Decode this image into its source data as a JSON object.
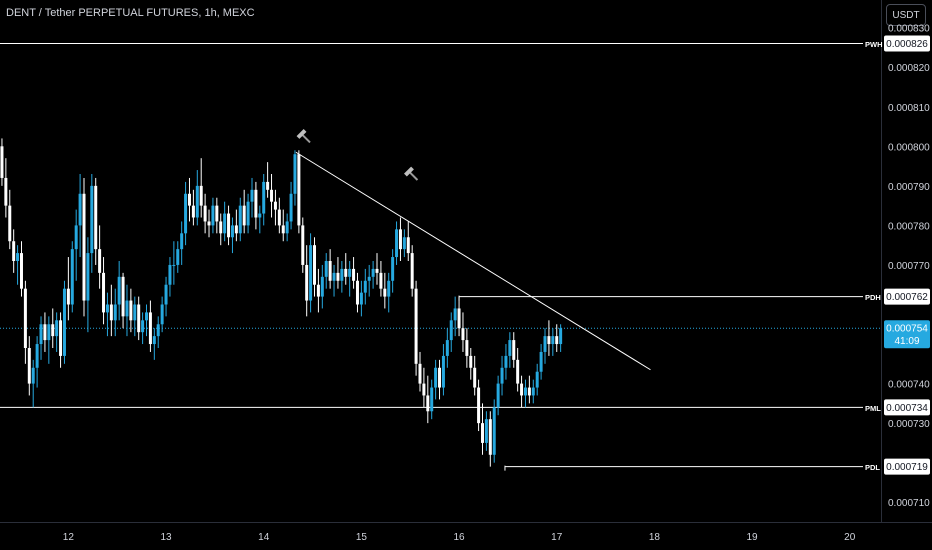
{
  "header": {
    "symbol_title": "DENT / Tether PERPETUAL FUTURES, 1h, MEXC",
    "currency_button": "USDT"
  },
  "colors": {
    "background": "#000000",
    "up_candle": "#26a9e0",
    "down_candle": "#ffffff",
    "level_line": "#ffffff",
    "trendline": "#ffffff",
    "current_price_line": "#26a9e0",
    "axis_text": "#d1d4dc"
  },
  "chart_data": {
    "type": "candlestick",
    "y_ticks": [
      "0.000830",
      "0.000820",
      "0.000810",
      "0.000800",
      "0.000790",
      "0.000780",
      "0.000770",
      "0.000740",
      "0.000730",
      "0.000710"
    ],
    "y_tick_values": [
      0.00083,
      0.00082,
      0.00081,
      0.0008,
      0.00079,
      0.00078,
      0.00077,
      0.00074,
      0.00073,
      0.00071
    ],
    "x_ticks": [
      "12",
      "13",
      "14",
      "15",
      "16",
      "17",
      "18",
      "19",
      "20"
    ],
    "x_tick_days": [
      12,
      13,
      14,
      15,
      16,
      17,
      18,
      19,
      20
    ],
    "x_range": [
      11.3,
      20.32
    ],
    "y_range": [
      0.000705,
      0.000837
    ],
    "levels": [
      {
        "label": "PWH",
        "value": 0.000826,
        "value_text": "0.000826",
        "from_day": 11.3
      },
      {
        "label": "PDH",
        "value": 0.000762,
        "value_text": "0.000762",
        "from_day": 16.0
      },
      {
        "label": "PML",
        "value": 0.000734,
        "value_text": "0.000734",
        "from_day": 11.3
      },
      {
        "label": "PDL",
        "value": 0.000719,
        "value_text": "0.000719",
        "from_day": 16.47
      }
    ],
    "current_price": {
      "value": 0.000754,
      "value_text": "0.000754",
      "countdown": "41:09"
    },
    "trendline": {
      "start": [
        14.33,
        0.0007985
      ],
      "end": [
        17.96,
        0.0007435
      ]
    },
    "pivot_markers": [
      {
        "day": 14.33,
        "price": 0.000801,
        "icon": "hammer-icon"
      },
      {
        "day": 15.43,
        "price": 0.0007915,
        "icon": "hammer-icon"
      }
    ],
    "candles": [
      [
        11.32,
        0.0008,
        0.000802,
        0.00079,
        0.000792
      ],
      [
        11.36,
        0.000792,
        0.000797,
        0.000782,
        0.000785
      ],
      [
        11.4,
        0.000785,
        0.000789,
        0.000774,
        0.000776
      ],
      [
        11.44,
        0.000776,
        0.000779,
        0.000768,
        0.000771
      ],
      [
        11.48,
        0.000771,
        0.000775,
        0.000765,
        0.000773
      ],
      [
        11.52,
        0.000773,
        0.000776,
        0.000762,
        0.000764
      ],
      [
        11.56,
        0.000764,
        0.000766,
        0.000745,
        0.000749
      ],
      [
        11.6,
        0.000749,
        0.000752,
        0.000737,
        0.00074
      ],
      [
        11.64,
        0.00074,
        0.000746,
        0.000734,
        0.000744
      ],
      [
        11.68,
        0.000744,
        0.000752,
        0.000739,
        0.00075
      ],
      [
        11.72,
        0.00075,
        0.000757,
        0.000746,
        0.000755
      ],
      [
        11.76,
        0.000755,
        0.000758,
        0.000748,
        0.000751
      ],
      [
        11.8,
        0.000751,
        0.000757,
        0.000745,
        0.000755
      ],
      [
        11.84,
        0.000755,
        0.000759,
        0.000749,
        0.000752
      ],
      [
        11.88,
        0.000752,
        0.000758,
        0.000748,
        0.000756
      ],
      [
        11.92,
        0.000756,
        0.000758,
        0.000744,
        0.000747
      ],
      [
        11.96,
        0.000747,
        0.000766,
        0.000745,
        0.000764
      ],
      [
        12.0,
        0.000764,
        0.000772,
        0.000756,
        0.00076
      ],
      [
        12.04,
        0.00076,
        0.000776,
        0.000758,
        0.000774
      ],
      [
        12.08,
        0.000774,
        0.000784,
        0.000766,
        0.00078
      ],
      [
        12.12,
        0.00078,
        0.000793,
        0.000772,
        0.000788
      ],
      [
        12.16,
        0.000788,
        0.000792,
        0.000757,
        0.000761
      ],
      [
        12.2,
        0.000761,
        0.000777,
        0.000753,
        0.000773
      ],
      [
        12.24,
        0.000773,
        0.000793,
        0.000768,
        0.00079
      ],
      [
        12.28,
        0.00079,
        0.000792,
        0.00077,
        0.000774
      ],
      [
        12.32,
        0.000774,
        0.00078,
        0.000764,
        0.000768
      ],
      [
        12.36,
        0.000768,
        0.000772,
        0.000755,
        0.000758
      ],
      [
        12.4,
        0.000758,
        0.000763,
        0.000752,
        0.00076
      ],
      [
        12.44,
        0.00076,
        0.000765,
        0.000752,
        0.000756
      ],
      [
        12.48,
        0.000756,
        0.000764,
        0.000752,
        0.00076
      ],
      [
        12.52,
        0.00076,
        0.000771,
        0.000756,
        0.000767
      ],
      [
        12.56,
        0.000767,
        0.000768,
        0.000754,
        0.000757
      ],
      [
        12.6,
        0.000757,
        0.000765,
        0.000752,
        0.000761
      ],
      [
        12.64,
        0.000761,
        0.000764,
        0.000753,
        0.000756
      ],
      [
        12.68,
        0.000756,
        0.000762,
        0.000752,
        0.00076
      ],
      [
        12.72,
        0.00076,
        0.000762,
        0.000751,
        0.000753
      ],
      [
        12.76,
        0.000753,
        0.000758,
        0.00075,
        0.000756
      ],
      [
        12.8,
        0.000756,
        0.00076,
        0.000752,
        0.000758
      ],
      [
        12.84,
        0.000758,
        0.000761,
        0.000748,
        0.00075
      ],
      [
        12.88,
        0.00075,
        0.000754,
        0.000746,
        0.000752
      ],
      [
        12.92,
        0.000752,
        0.000757,
        0.000749,
        0.000755
      ],
      [
        12.96,
        0.000755,
        0.000762,
        0.000753,
        0.00076
      ],
      [
        13.0,
        0.00076,
        0.000767,
        0.000757,
        0.000765
      ],
      [
        13.04,
        0.000765,
        0.000772,
        0.000762,
        0.00077
      ],
      [
        13.08,
        0.00077,
        0.000776,
        0.000765,
        0.00077
      ],
      [
        13.12,
        0.00077,
        0.000776,
        0.000768,
        0.000774
      ],
      [
        13.16,
        0.000774,
        0.000781,
        0.00077,
        0.000778
      ],
      [
        13.2,
        0.000778,
        0.000791,
        0.000775,
        0.000788
      ],
      [
        13.24,
        0.000788,
        0.000792,
        0.000781,
        0.000785
      ],
      [
        13.28,
        0.000785,
        0.000789,
        0.00078,
        0.000782
      ],
      [
        13.32,
        0.000782,
        0.000794,
        0.00078,
        0.00079
      ],
      [
        13.36,
        0.00079,
        0.000797,
        0.000782,
        0.000785
      ],
      [
        13.4,
        0.000785,
        0.000788,
        0.000778,
        0.000781
      ],
      [
        13.44,
        0.000781,
        0.000784,
        0.000777,
        0.00078
      ],
      [
        13.48,
        0.00078,
        0.000787,
        0.000778,
        0.000785
      ],
      [
        13.52,
        0.000785,
        0.000787,
        0.000778,
        0.000781
      ],
      [
        13.56,
        0.000781,
        0.000783,
        0.000775,
        0.000778
      ],
      [
        13.6,
        0.000778,
        0.000786,
        0.000776,
        0.000783
      ],
      [
        13.64,
        0.000783,
        0.000785,
        0.000775,
        0.000777
      ],
      [
        13.68,
        0.000777,
        0.000782,
        0.000773,
        0.00078
      ],
      [
        13.72,
        0.00078,
        0.000784,
        0.000776,
        0.000778
      ],
      [
        13.76,
        0.000778,
        0.000787,
        0.000776,
        0.000785
      ],
      [
        13.8,
        0.000785,
        0.000789,
        0.000778,
        0.00078
      ],
      [
        13.84,
        0.00078,
        0.000788,
        0.000778,
        0.000786
      ],
      [
        13.88,
        0.000786,
        0.000792,
        0.000782,
        0.000789
      ],
      [
        13.92,
        0.000789,
        0.000791,
        0.000779,
        0.000782
      ],
      [
        13.96,
        0.000782,
        0.000785,
        0.000778,
        0.000783
      ],
      [
        14.0,
        0.000783,
        0.000793,
        0.00078,
        0.000791
      ],
      [
        14.04,
        0.000791,
        0.000796,
        0.000787,
        0.000789
      ],
      [
        14.08,
        0.000789,
        0.000793,
        0.000782,
        0.000786
      ],
      [
        14.12,
        0.000786,
        0.000789,
        0.00078,
        0.000784
      ],
      [
        14.16,
        0.000784,
        0.000787,
        0.000778,
        0.00078
      ],
      [
        14.2,
        0.00078,
        0.000784,
        0.000776,
        0.000778
      ],
      [
        14.24,
        0.000778,
        0.000783,
        0.000776,
        0.000781
      ],
      [
        14.28,
        0.000781,
        0.000791,
        0.000779,
        0.000788
      ],
      [
        14.32,
        0.000788,
        0.000799,
        0.000785,
        0.000798
      ],
      [
        14.36,
        0.000798,
        0.000799,
        0.000778,
        0.00078
      ],
      [
        14.4,
        0.00078,
        0.000782,
        0.000768,
        0.00077
      ],
      [
        14.44,
        0.00077,
        0.000775,
        0.000757,
        0.000761
      ],
      [
        14.48,
        0.000761,
        0.000778,
        0.000758,
        0.000775
      ],
      [
        14.52,
        0.000775,
        0.000777,
        0.000762,
        0.000765
      ],
      [
        14.56,
        0.000765,
        0.000769,
        0.000758,
        0.000762
      ],
      [
        14.6,
        0.000762,
        0.00077,
        0.000759,
        0.000767
      ],
      [
        14.64,
        0.000767,
        0.000773,
        0.000764,
        0.000771
      ],
      [
        14.68,
        0.000771,
        0.000774,
        0.000764,
        0.000766
      ],
      [
        14.72,
        0.000766,
        0.00077,
        0.000762,
        0.000768
      ],
      [
        14.76,
        0.000768,
        0.000772,
        0.000764,
        0.000766
      ],
      [
        14.8,
        0.000766,
        0.000771,
        0.000763,
        0.000769
      ],
      [
        14.84,
        0.000769,
        0.000773,
        0.000765,
        0.000767
      ],
      [
        14.88,
        0.000767,
        0.000771,
        0.000762,
        0.000769
      ],
      [
        14.92,
        0.000769,
        0.000772,
        0.000764,
        0.000766
      ],
      [
        14.96,
        0.000766,
        0.000768,
        0.000758,
        0.00076
      ],
      [
        15.0,
        0.00076,
        0.000766,
        0.000757,
        0.000763
      ],
      [
        15.04,
        0.000763,
        0.000769,
        0.00076,
        0.000766
      ],
      [
        15.08,
        0.000766,
        0.00077,
        0.000762,
        0.000767
      ],
      [
        15.12,
        0.000767,
        0.000771,
        0.000764,
        0.000769
      ],
      [
        15.16,
        0.000769,
        0.000773,
        0.000765,
        0.000768
      ],
      [
        15.2,
        0.000768,
        0.000771,
        0.000762,
        0.000764
      ],
      [
        15.24,
        0.000764,
        0.000768,
        0.000759,
        0.000762
      ],
      [
        15.28,
        0.000762,
        0.000768,
        0.000758,
        0.000766
      ],
      [
        15.32,
        0.000766,
        0.000774,
        0.000763,
        0.000772
      ],
      [
        15.36,
        0.000772,
        0.000781,
        0.00077,
        0.000779
      ],
      [
        15.4,
        0.000779,
        0.000782,
        0.000771,
        0.000774
      ],
      [
        15.44,
        0.000774,
        0.000779,
        0.000772,
        0.000777
      ],
      [
        15.48,
        0.000777,
        0.000781,
        0.000771,
        0.000773
      ],
      [
        15.52,
        0.000773,
        0.000775,
        0.000762,
        0.000764
      ],
      [
        15.56,
        0.000764,
        0.000766,
        0.000742,
        0.000745
      ],
      [
        15.6,
        0.000745,
        0.000748,
        0.000738,
        0.00074
      ],
      [
        15.64,
        0.00074,
        0.000744,
        0.000734,
        0.000737
      ],
      [
        15.68,
        0.000737,
        0.000742,
        0.00073,
        0.000733
      ],
      [
        15.72,
        0.000733,
        0.000741,
        0.000731,
        0.000739
      ],
      [
        15.76,
        0.000739,
        0.000746,
        0.000736,
        0.000744
      ],
      [
        15.8,
        0.000744,
        0.000746,
        0.000736,
        0.000739
      ],
      [
        15.84,
        0.000739,
        0.00075,
        0.000737,
        0.000747
      ],
      [
        15.88,
        0.000747,
        0.000754,
        0.000744,
        0.000751
      ],
      [
        15.92,
        0.000751,
        0.000758,
        0.000748,
        0.000756
      ],
      [
        15.96,
        0.000756,
        0.000762,
        0.000752,
        0.000759
      ],
      [
        16.0,
        0.000759,
        0.000762,
        0.000752,
        0.000754
      ],
      [
        16.04,
        0.000754,
        0.000758,
        0.000748,
        0.000751
      ],
      [
        16.08,
        0.000751,
        0.000754,
        0.000744,
        0.000747
      ],
      [
        16.12,
        0.000747,
        0.000749,
        0.000741,
        0.000744
      ],
      [
        16.16,
        0.000744,
        0.000747,
        0.000737,
        0.000739
      ],
      [
        16.2,
        0.000739,
        0.000741,
        0.000728,
        0.00073
      ],
      [
        16.24,
        0.00073,
        0.000735,
        0.000722,
        0.000725
      ],
      [
        16.28,
        0.000725,
        0.000733,
        0.000723,
        0.000731
      ],
      [
        16.32,
        0.000731,
        0.000733,
        0.000719,
        0.000722
      ],
      [
        16.36,
        0.000722,
        0.000736,
        0.00072,
        0.000734
      ],
      [
        16.4,
        0.000734,
        0.000742,
        0.000732,
        0.00074
      ],
      [
        16.44,
        0.00074,
        0.000747,
        0.000737,
        0.000744
      ],
      [
        16.48,
        0.000744,
        0.00075,
        0.000741,
        0.000747
      ],
      [
        16.52,
        0.000747,
        0.000753,
        0.000744,
        0.000751
      ],
      [
        16.56,
        0.000751,
        0.000753,
        0.000744,
        0.000746
      ],
      [
        16.6,
        0.000746,
        0.000749,
        0.000738,
        0.00074
      ],
      [
        16.64,
        0.00074,
        0.000742,
        0.000734,
        0.000737
      ],
      [
        16.68,
        0.000737,
        0.000741,
        0.000734,
        0.000739
      ],
      [
        16.72,
        0.000739,
        0.000742,
        0.000735,
        0.000737
      ],
      [
        16.76,
        0.000737,
        0.000741,
        0.000735,
        0.000739
      ],
      [
        16.8,
        0.000739,
        0.000745,
        0.000737,
        0.000743
      ],
      [
        16.84,
        0.000743,
        0.00075,
        0.000741,
        0.000748
      ],
      [
        16.88,
        0.000748,
        0.000754,
        0.000745,
        0.000752
      ],
      [
        16.92,
        0.000752,
        0.000756,
        0.000747,
        0.00075
      ],
      [
        16.96,
        0.00075,
        0.000754,
        0.000747,
        0.000752
      ],
      [
        17.0,
        0.000752,
        0.000755,
        0.000748,
        0.00075
      ],
      [
        17.04,
        0.00075,
        0.000755,
        0.000748,
        0.000754
      ]
    ]
  }
}
